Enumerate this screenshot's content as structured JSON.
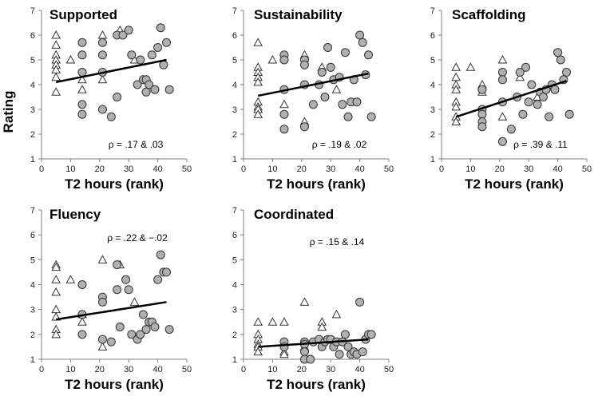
{
  "figure": {
    "ylabel": "Rating",
    "marker_fill": "#b0b0b0",
    "line_color": "#000000"
  },
  "chart_data": [
    {
      "type": "scatter",
      "title": "Supported",
      "annotation": "ρ = .17 & .03",
      "xlabel": "T2 hours (rank)",
      "xlim": [
        0,
        50
      ],
      "ylim": [
        1,
        7
      ],
      "xticks": [
        0,
        10,
        20,
        30,
        40,
        50
      ],
      "yticks": [
        1,
        2,
        3,
        4,
        5,
        6,
        7
      ],
      "triangles": [
        [
          5,
          6.0
        ],
        [
          5,
          5.6
        ],
        [
          5,
          5.2
        ],
        [
          5,
          5.0
        ],
        [
          5,
          4.8
        ],
        [
          5,
          4.6
        ],
        [
          5,
          4.3
        ],
        [
          5,
          3.7
        ],
        [
          10,
          5.0
        ],
        [
          14,
          4.2
        ],
        [
          14,
          3.8
        ],
        [
          21,
          6.0
        ],
        [
          21,
          4.2
        ],
        [
          27,
          6.2
        ],
        [
          32,
          5.0
        ]
      ],
      "circles": [
        [
          14,
          5.7
        ],
        [
          14,
          5.2
        ],
        [
          14,
          4.5
        ],
        [
          14,
          3.2
        ],
        [
          14,
          2.8
        ],
        [
          21,
          5.7
        ],
        [
          21,
          5.2
        ],
        [
          21,
          4.5
        ],
        [
          21,
          3.0
        ],
        [
          24,
          2.7
        ],
        [
          26,
          6.0
        ],
        [
          26,
          3.5
        ],
        [
          28,
          6.0
        ],
        [
          30,
          6.2
        ],
        [
          31,
          5.2
        ],
        [
          33,
          4.0
        ],
        [
          34,
          5.0
        ],
        [
          35,
          4.2
        ],
        [
          36,
          4.2
        ],
        [
          36,
          3.7
        ],
        [
          37,
          4.0
        ],
        [
          38,
          5.2
        ],
        [
          39,
          3.8
        ],
        [
          40,
          5.5
        ],
        [
          41,
          6.3
        ],
        [
          42,
          4.8
        ],
        [
          43,
          5.7
        ],
        [
          44,
          3.8
        ]
      ],
      "trend": [
        [
          5,
          4.1
        ],
        [
          43,
          5.0
        ]
      ]
    },
    {
      "type": "scatter",
      "title": "Sustainability",
      "annotation": "ρ = .19 & .02",
      "xlabel": "T2 hours (rank)",
      "xlim": [
        0,
        50
      ],
      "ylim": [
        1,
        7
      ],
      "xticks": [
        0,
        10,
        20,
        30,
        40,
        50
      ],
      "yticks": [
        1,
        2,
        3,
        4,
        5,
        6,
        7
      ],
      "triangles": [
        [
          5,
          5.7
        ],
        [
          5,
          4.7
        ],
        [
          5,
          4.5
        ],
        [
          5,
          4.3
        ],
        [
          5,
          4.1
        ],
        [
          5,
          3.3
        ],
        [
          5,
          3.1
        ],
        [
          5,
          3.0
        ],
        [
          5,
          2.8
        ],
        [
          10,
          5.0
        ],
        [
          14,
          3.2
        ],
        [
          21,
          5.2
        ],
        [
          21,
          2.5
        ],
        [
          27,
          4.7
        ],
        [
          32,
          3.8
        ]
      ],
      "circles": [
        [
          14,
          5.2
        ],
        [
          14,
          5.0
        ],
        [
          14,
          3.8
        ],
        [
          14,
          2.8
        ],
        [
          14,
          2.2
        ],
        [
          21,
          5.0
        ],
        [
          21,
          4.8
        ],
        [
          21,
          4.0
        ],
        [
          21,
          2.3
        ],
        [
          24,
          3.2
        ],
        [
          26,
          4.0
        ],
        [
          27,
          4.5
        ],
        [
          28,
          3.5
        ],
        [
          29,
          5.5
        ],
        [
          30,
          4.7
        ],
        [
          31,
          4.2
        ],
        [
          33,
          4.3
        ],
        [
          34,
          3.2
        ],
        [
          35,
          5.3
        ],
        [
          36,
          2.7
        ],
        [
          37,
          3.3
        ],
        [
          38,
          4.2
        ],
        [
          39,
          3.3
        ],
        [
          40,
          6.0
        ],
        [
          41,
          5.7
        ],
        [
          42,
          4.4
        ],
        [
          43,
          5.2
        ],
        [
          44,
          2.7
        ]
      ],
      "trend": [
        [
          5,
          3.55
        ],
        [
          43,
          4.45
        ]
      ]
    },
    {
      "type": "scatter",
      "title": "Scaffolding",
      "annotation": "ρ = .39 & .11",
      "xlabel": "T2 hours (rank)",
      "xlim": [
        0,
        50
      ],
      "ylim": [
        1,
        7
      ],
      "xticks": [
        0,
        10,
        20,
        30,
        40,
        50
      ],
      "yticks": [
        1,
        2,
        3,
        4,
        5,
        6,
        7
      ],
      "triangles": [
        [
          5,
          4.7
        ],
        [
          5,
          4.3
        ],
        [
          5,
          4.0
        ],
        [
          5,
          3.8
        ],
        [
          5,
          3.3
        ],
        [
          5,
          3.1
        ],
        [
          5,
          2.7
        ],
        [
          5,
          2.5
        ],
        [
          10,
          4.7
        ],
        [
          14,
          4.0
        ],
        [
          14,
          3.7
        ],
        [
          21,
          5.0
        ],
        [
          21,
          2.7
        ],
        [
          27,
          4.3
        ],
        [
          33,
          3.5
        ]
      ],
      "circles": [
        [
          14,
          3.8
        ],
        [
          14,
          3.0
        ],
        [
          14,
          2.8
        ],
        [
          14,
          2.5
        ],
        [
          14,
          2.3
        ],
        [
          21,
          4.5
        ],
        [
          21,
          4.2
        ],
        [
          21,
          3.3
        ],
        [
          21,
          1.7
        ],
        [
          24,
          2.2
        ],
        [
          26,
          3.5
        ],
        [
          27,
          4.5
        ],
        [
          28,
          2.8
        ],
        [
          29,
          4.7
        ],
        [
          30,
          3.3
        ],
        [
          31,
          4.0
        ],
        [
          33,
          3.2
        ],
        [
          34,
          3.7
        ],
        [
          35,
          3.5
        ],
        [
          36,
          3.8
        ],
        [
          37,
          2.7
        ],
        [
          38,
          4.0
        ],
        [
          39,
          3.8
        ],
        [
          40,
          5.3
        ],
        [
          41,
          5.0
        ],
        [
          42,
          4.2
        ],
        [
          43,
          4.5
        ],
        [
          44,
          2.8
        ]
      ],
      "trend": [
        [
          5,
          2.7
        ],
        [
          43,
          4.15
        ]
      ]
    },
    {
      "type": "scatter",
      "title": "Fluency",
      "annotation": "ρ = .22 & −.02",
      "xlabel": "T2 hours (rank)",
      "xlim": [
        0,
        50
      ],
      "ylim": [
        1,
        7
      ],
      "xticks": [
        0,
        10,
        20,
        30,
        40,
        50
      ],
      "yticks": [
        1,
        2,
        3,
        4,
        5,
        6,
        7
      ],
      "triangles": [
        [
          5,
          4.8
        ],
        [
          5,
          4.7
        ],
        [
          5,
          4.2
        ],
        [
          5,
          3.7
        ],
        [
          5,
          3.0
        ],
        [
          5,
          2.7
        ],
        [
          5,
          2.2
        ],
        [
          5,
          2.0
        ],
        [
          10,
          4.2
        ],
        [
          14,
          2.8
        ],
        [
          14,
          2.5
        ],
        [
          21,
          5.0
        ],
        [
          21,
          1.5
        ],
        [
          27,
          4.8
        ],
        [
          32,
          3.3
        ]
      ],
      "circles": [
        [
          14,
          4.0
        ],
        [
          14,
          2.8
        ],
        [
          14,
          2.0
        ],
        [
          21,
          3.5
        ],
        [
          21,
          3.3
        ],
        [
          21,
          1.8
        ],
        [
          24,
          1.7
        ],
        [
          26,
          4.8
        ],
        [
          26,
          3.8
        ],
        [
          27,
          2.3
        ],
        [
          29,
          4.2
        ],
        [
          30,
          3.8
        ],
        [
          31,
          2.0
        ],
        [
          33,
          1.8
        ],
        [
          34,
          2.0
        ],
        [
          35,
          2.8
        ],
        [
          36,
          2.2
        ],
        [
          37,
          2.5
        ],
        [
          38,
          2.5
        ],
        [
          39,
          2.3
        ],
        [
          40,
          4.2
        ],
        [
          41,
          5.2
        ],
        [
          42,
          4.5
        ],
        [
          43,
          4.5
        ],
        [
          44,
          2.2
        ]
      ],
      "trend": [
        [
          5,
          2.6
        ],
        [
          43,
          3.3
        ]
      ]
    },
    {
      "type": "scatter",
      "title": "Coordinated",
      "annotation": "ρ = .15 & .14",
      "xlabel": "T2 hours (rank)",
      "xlim": [
        0,
        50
      ],
      "ylim": [
        1,
        7
      ],
      "xticks": [
        0,
        10,
        20,
        30,
        40,
        50
      ],
      "yticks": [
        1,
        2,
        3,
        4,
        5,
        6,
        7
      ],
      "triangles": [
        [
          5,
          2.5
        ],
        [
          5,
          2.0
        ],
        [
          5,
          1.8
        ],
        [
          5,
          1.6
        ],
        [
          5,
          1.5
        ],
        [
          5,
          1.3
        ],
        [
          10,
          2.5
        ],
        [
          14,
          2.5
        ],
        [
          14,
          1.3
        ],
        [
          14,
          1.2
        ],
        [
          21,
          3.3
        ],
        [
          21,
          1.5
        ],
        [
          27,
          2.5
        ],
        [
          27,
          2.3
        ],
        [
          32,
          2.8
        ]
      ],
      "circles": [
        [
          14,
          1.7
        ],
        [
          14,
          1.5
        ],
        [
          21,
          1.7
        ],
        [
          21,
          1.6
        ],
        [
          21,
          1.3
        ],
        [
          21,
          1.0
        ],
        [
          23,
          1.0
        ],
        [
          24,
          1.7
        ],
        [
          26,
          1.8
        ],
        [
          27,
          1.5
        ],
        [
          28,
          1.7
        ],
        [
          29,
          1.8
        ],
        [
          30,
          1.8
        ],
        [
          31,
          1.5
        ],
        [
          32,
          1.7
        ],
        [
          33,
          1.2
        ],
        [
          34,
          1.7
        ],
        [
          35,
          2.0
        ],
        [
          36,
          1.5
        ],
        [
          37,
          1.2
        ],
        [
          38,
          1.3
        ],
        [
          39,
          1.2
        ],
        [
          40,
          3.3
        ],
        [
          41,
          1.3
        ],
        [
          42,
          1.8
        ],
        [
          43,
          2.0
        ],
        [
          44,
          2.0
        ]
      ],
      "trend": [
        [
          5,
          1.5
        ],
        [
          43,
          1.8
        ]
      ]
    }
  ]
}
